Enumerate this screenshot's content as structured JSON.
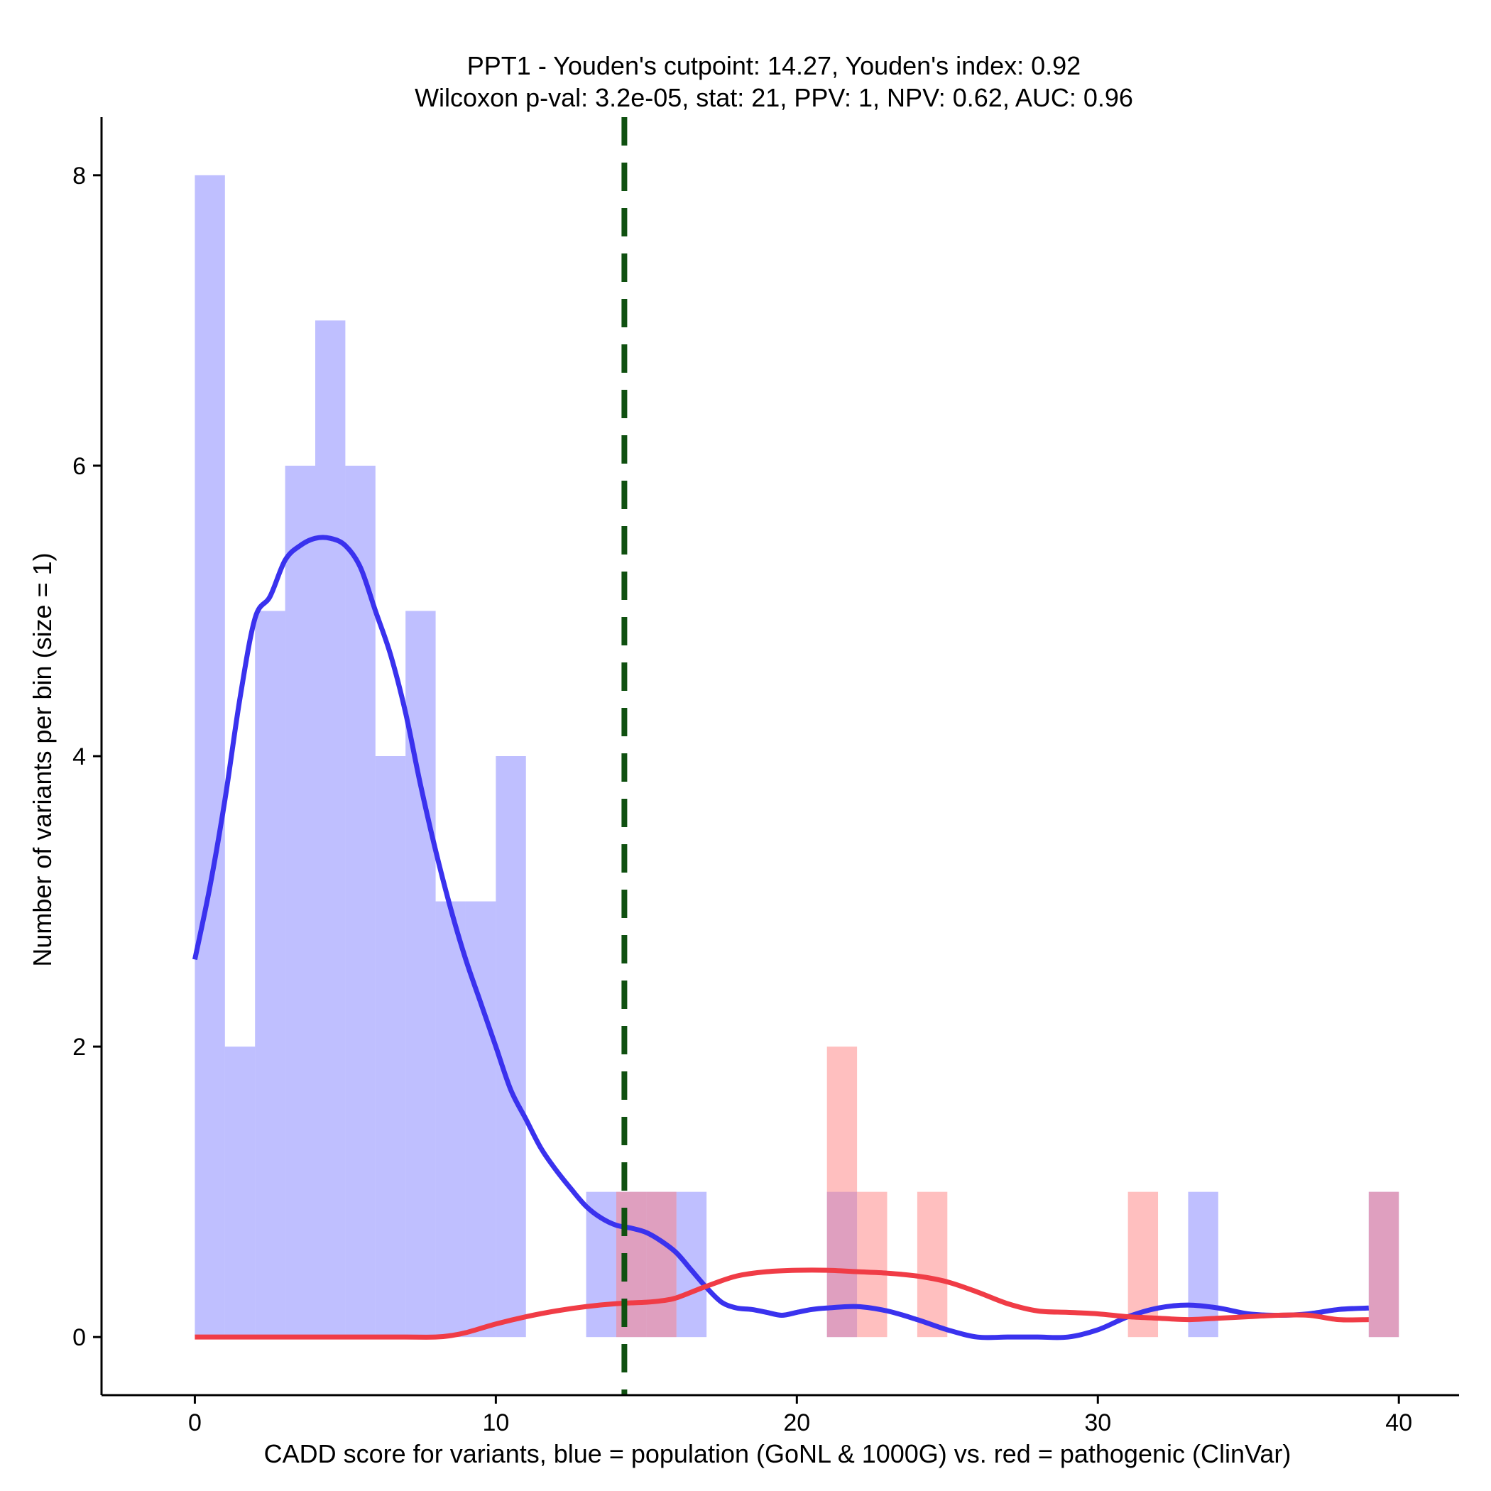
{
  "chart_data": {
    "type": "bar",
    "title_line1": "PPT1 - Youden's cutpoint: 14.27, Youden's index: 0.92",
    "title_line2": "Wilcoxon p-val: 3.2e-05, stat: 21, PPV: 1, NPV: 0.62, AUC: 0.96",
    "xlabel": "CADD score for variants, blue = population (GoNL & 1000G) vs. red = pathogenic (ClinVar)",
    "ylabel": "Number of variants per bin (size = 1)",
    "xlim": [
      -3.1,
      42
    ],
    "ylim": [
      -0.4,
      8.4
    ],
    "xticks": [
      0,
      10,
      20,
      30,
      40
    ],
    "xtick_labels": [
      "0",
      "10",
      "20",
      "30",
      "40"
    ],
    "yticks": [
      0,
      2,
      4,
      6,
      8
    ],
    "ytick_labels": [
      "0",
      "2",
      "4",
      "6",
      "8"
    ],
    "bin_width": 1,
    "cutpoint": 14.27,
    "colors": {
      "population_bar": "#8080ff",
      "pathogenic_bar": "#ff8080",
      "population_line": "#3a32ee",
      "pathogenic_line": "#f03c46",
      "cutpoint_line": "#0f5010"
    },
    "series": [
      {
        "name": "population (GoNL & 1000G)",
        "bin_starts": [
          0,
          1,
          2,
          3,
          4,
          5,
          6,
          7,
          8,
          9,
          10,
          13,
          14,
          15,
          16,
          21,
          33,
          39
        ],
        "counts": [
          8,
          2,
          5,
          6,
          7,
          6,
          4,
          5,
          3,
          3,
          4,
          1,
          1,
          1,
          1,
          1,
          1,
          1
        ]
      },
      {
        "name": "pathogenic (ClinVar)",
        "bin_starts": [
          14,
          15,
          21,
          22,
          24,
          31,
          39
        ],
        "counts": [
          1,
          1,
          2,
          1,
          1,
          1,
          1
        ]
      }
    ],
    "density_lines": [
      {
        "name": "population density",
        "x": [
          0,
          0.5,
          1,
          1.5,
          2,
          2.5,
          3,
          3.5,
          4,
          4.5,
          5,
          5.5,
          6,
          6.5,
          7,
          7.5,
          8,
          8.5,
          9,
          9.5,
          10,
          10.5,
          11,
          11.5,
          12,
          12.5,
          13,
          13.5,
          14,
          14.5,
          15,
          15.5,
          16,
          16.5,
          17,
          17.5,
          18,
          18.5,
          19,
          19.5,
          20,
          20.5,
          21,
          22,
          23,
          24,
          25,
          26,
          27,
          28,
          29,
          30,
          31,
          32,
          33,
          34,
          35,
          36,
          37,
          38,
          39
        ],
        "y": [
          2.6,
          3.1,
          3.7,
          4.4,
          4.95,
          5.1,
          5.35,
          5.45,
          5.5,
          5.5,
          5.45,
          5.3,
          5.0,
          4.7,
          4.3,
          3.8,
          3.35,
          2.95,
          2.6,
          2.3,
          2.0,
          1.7,
          1.5,
          1.3,
          1.15,
          1.02,
          0.9,
          0.82,
          0.77,
          0.75,
          0.72,
          0.66,
          0.58,
          0.46,
          0.34,
          0.24,
          0.2,
          0.19,
          0.17,
          0.15,
          0.17,
          0.19,
          0.2,
          0.21,
          0.18,
          0.12,
          0.05,
          0.0,
          0.0,
          0.0,
          0.0,
          0.05,
          0.14,
          0.2,
          0.22,
          0.2,
          0.16,
          0.15,
          0.16,
          0.19,
          0.2
        ]
      },
      {
        "name": "pathogenic density",
        "x": [
          0,
          1,
          2,
          3,
          4,
          5,
          6,
          7,
          8,
          8.5,
          9,
          10,
          11,
          12,
          13,
          14,
          15,
          15.5,
          16,
          17,
          18,
          19,
          20,
          21,
          22,
          23,
          24,
          25,
          26,
          27,
          28,
          29,
          30,
          31,
          32,
          33,
          34,
          35,
          36,
          37,
          38,
          39
        ],
        "y": [
          0,
          0,
          0,
          0,
          0,
          0,
          0,
          0,
          0,
          0.01,
          0.03,
          0.09,
          0.14,
          0.18,
          0.21,
          0.23,
          0.24,
          0.25,
          0.27,
          0.35,
          0.42,
          0.45,
          0.46,
          0.46,
          0.45,
          0.44,
          0.42,
          0.38,
          0.31,
          0.23,
          0.18,
          0.17,
          0.16,
          0.14,
          0.13,
          0.12,
          0.13,
          0.14,
          0.15,
          0.15,
          0.12,
          0.12
        ]
      }
    ]
  }
}
